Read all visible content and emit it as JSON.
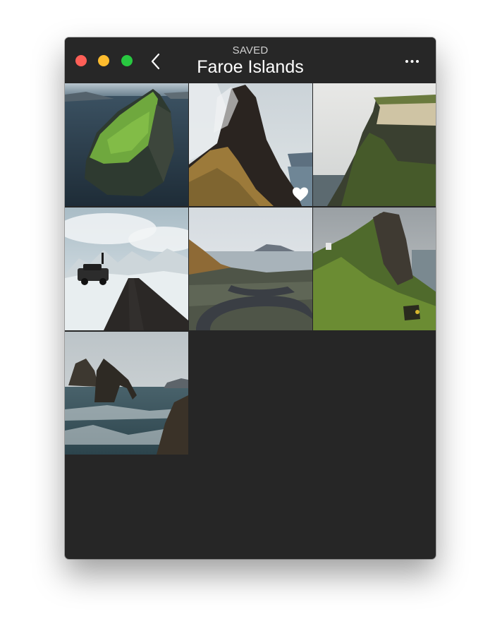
{
  "window": {
    "controls": {
      "close_color": "#fe5f57",
      "minimize_color": "#febc2e",
      "zoom_color": "#28c840"
    }
  },
  "header": {
    "section_label": "SAVED",
    "title": "Faroe Islands",
    "back_icon": "chevron-left-icon",
    "more_icon": "ellipsis-icon"
  },
  "photos": [
    {
      "subject": "grassy sea cliff island aerial",
      "liked": false
    },
    {
      "subject": "misty cliff above fjord",
      "liked": true
    },
    {
      "subject": "sea cliff with green top",
      "liked": false
    },
    {
      "subject": "snowy road with off-road car",
      "liked": false
    },
    {
      "subject": "winding mountain road to lake",
      "liked": false
    },
    {
      "subject": "green headland with lighthouse",
      "liked": false
    },
    {
      "subject": "sea stack arch in surf",
      "liked": false
    }
  ],
  "colors": {
    "background": "#262626",
    "heart": "#ffffff"
  }
}
